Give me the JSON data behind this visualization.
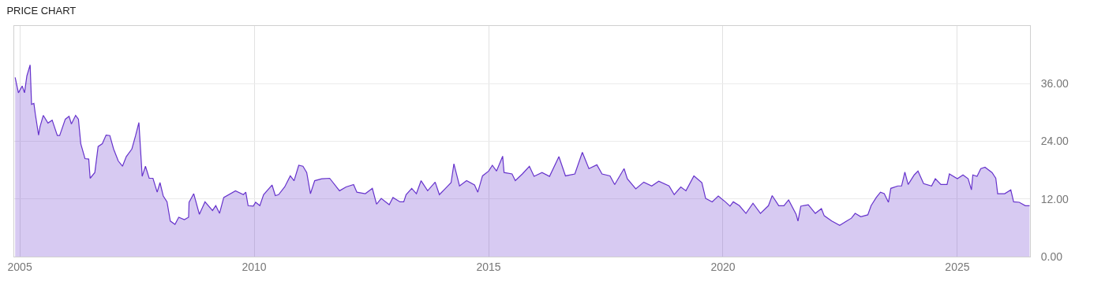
{
  "chart_data": {
    "type": "area",
    "title": "PRICE CHART",
    "x": [
      2004.9,
      2004.97,
      2005.05,
      2005.1,
      2005.15,
      2005.22,
      2005.25,
      2005.3,
      2005.33,
      2005.4,
      2005.43,
      2005.5,
      2005.6,
      2005.69,
      2005.8,
      2005.85,
      2005.97,
      2006.05,
      2006.1,
      2006.19,
      2006.25,
      2006.3,
      2006.39,
      2006.47,
      2006.5,
      2006.6,
      2006.67,
      2006.76,
      2006.84,
      2006.92,
      2007.0,
      2007.1,
      2007.19,
      2007.27,
      2007.39,
      2007.47,
      2007.54,
      2007.61,
      2007.68,
      2007.76,
      2007.84,
      2007.93,
      2007.99,
      2008.06,
      2008.14,
      2008.21,
      2008.31,
      2008.39,
      2008.51,
      2008.6,
      2008.61,
      2008.71,
      2008.83,
      2008.95,
      2009.11,
      2009.18,
      2009.26,
      2009.35,
      2009.6,
      2009.77,
      2009.82,
      2009.87,
      2009.98,
      2010.03,
      2010.12,
      2010.2,
      2010.38,
      2010.45,
      2010.52,
      2010.65,
      2010.77,
      2010.85,
      2010.95,
      2011.04,
      2011.12,
      2011.2,
      2011.29,
      2011.44,
      2011.61,
      2011.82,
      2011.96,
      2012.12,
      2012.19,
      2012.37,
      2012.52,
      2012.61,
      2012.71,
      2012.88,
      2012.96,
      2013.11,
      2013.19,
      2013.24,
      2013.36,
      2013.46,
      2013.56,
      2013.7,
      2013.86,
      2013.95,
      2014.08,
      2014.2,
      2014.26,
      2014.38,
      2014.53,
      2014.7,
      2014.77,
      2014.87,
      2015.0,
      2015.08,
      2015.17,
      2015.3,
      2015.33,
      2015.5,
      2015.57,
      2015.72,
      2015.87,
      2015.97,
      2016.14,
      2016.3,
      2016.5,
      2016.64,
      2016.84,
      2017.0,
      2017.14,
      2017.31,
      2017.42,
      2017.59,
      2017.69,
      2017.89,
      2017.96,
      2018.14,
      2018.31,
      2018.48,
      2018.63,
      2018.85,
      2018.96,
      2019.1,
      2019.21,
      2019.38,
      2019.55,
      2019.63,
      2019.77,
      2019.9,
      2020.05,
      2020.15,
      2020.22,
      2020.35,
      2020.49,
      2020.64,
      2020.8,
      2020.97,
      2021.05,
      2021.19,
      2021.3,
      2021.4,
      2021.56,
      2021.6,
      2021.66,
      2021.82,
      2021.97,
      2022.1,
      2022.16,
      2022.32,
      2022.49,
      2022.64,
      2022.74,
      2022.82,
      2022.94,
      2023.09,
      2023.16,
      2023.27,
      2023.36,
      2023.44,
      2023.53,
      2023.58,
      2023.73,
      2023.81,
      2023.88,
      2023.95,
      2024.08,
      2024.16,
      2024.28,
      2024.45,
      2024.53,
      2024.65,
      2024.78,
      2024.83,
      2025.0,
      2025.12,
      2025.23,
      2025.3,
      2025.33,
      2025.42,
      2025.5,
      2025.59,
      2025.74,
      2025.82,
      2025.86,
      2026.01,
      2026.14,
      2026.2,
      2026.32,
      2026.45,
      2026.54
    ],
    "series": [
      {
        "color": "#6633cc",
        "values": [
          37.3,
          34.1,
          35.5,
          34.1,
          37.6,
          39.9,
          31.7,
          31.9,
          29.7,
          25.3,
          27.0,
          29.4,
          27.8,
          28.4,
          25.2,
          25.2,
          28.6,
          29.2,
          27.6,
          29.4,
          28.6,
          23.5,
          20.4,
          20.3,
          16.3,
          17.5,
          22.9,
          23.5,
          25.3,
          25.2,
          22.4,
          19.9,
          18.8,
          20.8,
          22.4,
          25.2,
          27.9,
          16.7,
          18.8,
          16.3,
          16.3,
          13.4,
          15.4,
          12.6,
          11.4,
          7.4,
          6.7,
          8.2,
          7.7,
          8.2,
          11.3,
          13.1,
          8.8,
          11.4,
          9.6,
          10.6,
          9.0,
          12.3,
          13.7,
          12.9,
          13.4,
          10.6,
          10.5,
          11.3,
          10.6,
          12.9,
          14.9,
          12.7,
          12.9,
          14.5,
          16.8,
          15.8,
          19.0,
          18.8,
          17.5,
          13.1,
          15.8,
          16.2,
          16.3,
          13.7,
          14.5,
          15.0,
          13.4,
          13.1,
          14.2,
          10.9,
          12.1,
          10.8,
          12.3,
          11.4,
          11.4,
          12.9,
          14.2,
          13.1,
          15.8,
          13.7,
          15.5,
          12.9,
          14.2,
          15.4,
          19.3,
          14.7,
          15.8,
          14.9,
          13.4,
          16.8,
          17.8,
          19.0,
          17.8,
          20.9,
          17.5,
          17.2,
          15.8,
          17.2,
          18.8,
          16.7,
          17.5,
          16.7,
          20.8,
          16.8,
          17.2,
          21.7,
          18.3,
          19.1,
          17.2,
          16.8,
          15.0,
          18.3,
          16.2,
          14.1,
          15.5,
          14.7,
          15.7,
          14.7,
          12.9,
          14.5,
          13.7,
          16.8,
          15.4,
          12.1,
          11.4,
          12.6,
          11.4,
          10.5,
          11.4,
          10.6,
          9.0,
          11.1,
          9.0,
          10.6,
          12.7,
          10.6,
          10.6,
          11.8,
          8.8,
          7.4,
          10.5,
          10.8,
          9.0,
          10.0,
          8.5,
          7.4,
          6.5,
          7.4,
          8.0,
          9.0,
          8.3,
          8.7,
          10.6,
          12.3,
          13.4,
          13.1,
          11.3,
          14.2,
          14.7,
          14.7,
          17.6,
          15.0,
          17.0,
          17.8,
          15.2,
          14.7,
          16.2,
          15.0,
          15.0,
          17.2,
          16.2,
          17.0,
          16.2,
          13.9,
          17.0,
          16.7,
          18.3,
          18.6,
          17.5,
          16.3,
          13.1,
          13.1,
          13.9,
          11.4,
          11.3,
          10.6,
          10.6
        ]
      }
    ],
    "xlim": [
      2004.88,
      2026.55
    ],
    "xticks": [
      2005,
      2010,
      2015,
      2020,
      2025
    ],
    "ylim": [
      0,
      48
    ],
    "yticks": [
      {
        "value": 0,
        "label": "0.00"
      },
      {
        "value": 12,
        "label": "12.00"
      },
      {
        "value": 24,
        "label": "24.00"
      },
      {
        "value": 36,
        "label": "36.00"
      }
    ],
    "grid": true
  }
}
